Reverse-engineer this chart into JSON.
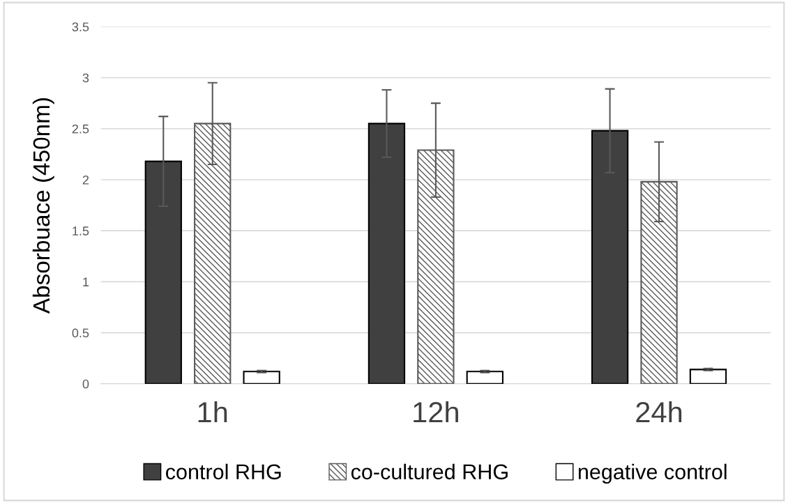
{
  "chart_data": {
    "type": "bar",
    "ylabel": "Absorbuace (450nm)",
    "categories": [
      "1h",
      "12h",
      "24h"
    ],
    "series": [
      {
        "name": "control RHG",
        "color": "#404040",
        "values": [
          2.18,
          2.55,
          2.48
        ],
        "errors": [
          0.44,
          0.33,
          0.41
        ]
      },
      {
        "name": "co-cultured RHG",
        "color": "#595959",
        "values": [
          2.55,
          2.29,
          1.98
        ],
        "errors": [
          0.4,
          0.46,
          0.39
        ]
      },
      {
        "name": "negative control",
        "color": "#ffffff",
        "values": [
          0.12,
          0.12,
          0.14
        ],
        "errors": [
          0.01,
          0.01,
          0.01
        ]
      }
    ],
    "ylim": [
      0,
      3.5
    ],
    "yticks": [
      0,
      0.5,
      1,
      1.5,
      2,
      2.5,
      3,
      3.5
    ],
    "grid": "y",
    "legend": "bottom"
  }
}
